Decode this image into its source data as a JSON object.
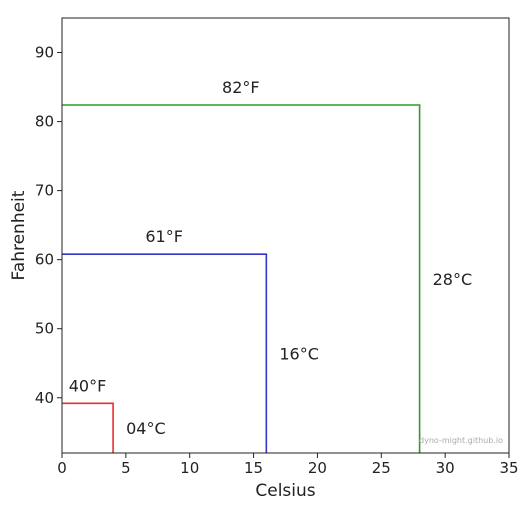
{
  "chart_data": {
    "type": "line",
    "xlabel": "Celsius",
    "ylabel": "Fahrenheit",
    "xlim": [
      0,
      35
    ],
    "ylim": [
      32,
      95
    ],
    "xticks": [
      0,
      5,
      10,
      15,
      20,
      25,
      30,
      35
    ],
    "yticks": [
      40,
      50,
      60,
      70,
      80,
      90
    ],
    "grid": false,
    "series": [
      {
        "color": "#e8302a",
        "points": [
          {
            "x": 0,
            "y": 39.2
          },
          {
            "x": 4,
            "y": 39.2
          },
          {
            "x": 4,
            "y": 32
          }
        ],
        "f_label": "40°F",
        "c_label": "04°C"
      },
      {
        "color": "#3535c8",
        "points": [
          {
            "x": 0,
            "y": 60.8
          },
          {
            "x": 16,
            "y": 60.8
          },
          {
            "x": 16,
            "y": 32
          }
        ],
        "f_label": "61°F",
        "c_label": "16°C"
      },
      {
        "color": "#2c9a2c",
        "points": [
          {
            "x": 0,
            "y": 82.4
          },
          {
            "x": 28,
            "y": 82.4
          },
          {
            "x": 28,
            "y": 32
          }
        ],
        "f_label": "82°F",
        "c_label": "28°C"
      }
    ],
    "watermark": "dyno-might.github.io"
  }
}
